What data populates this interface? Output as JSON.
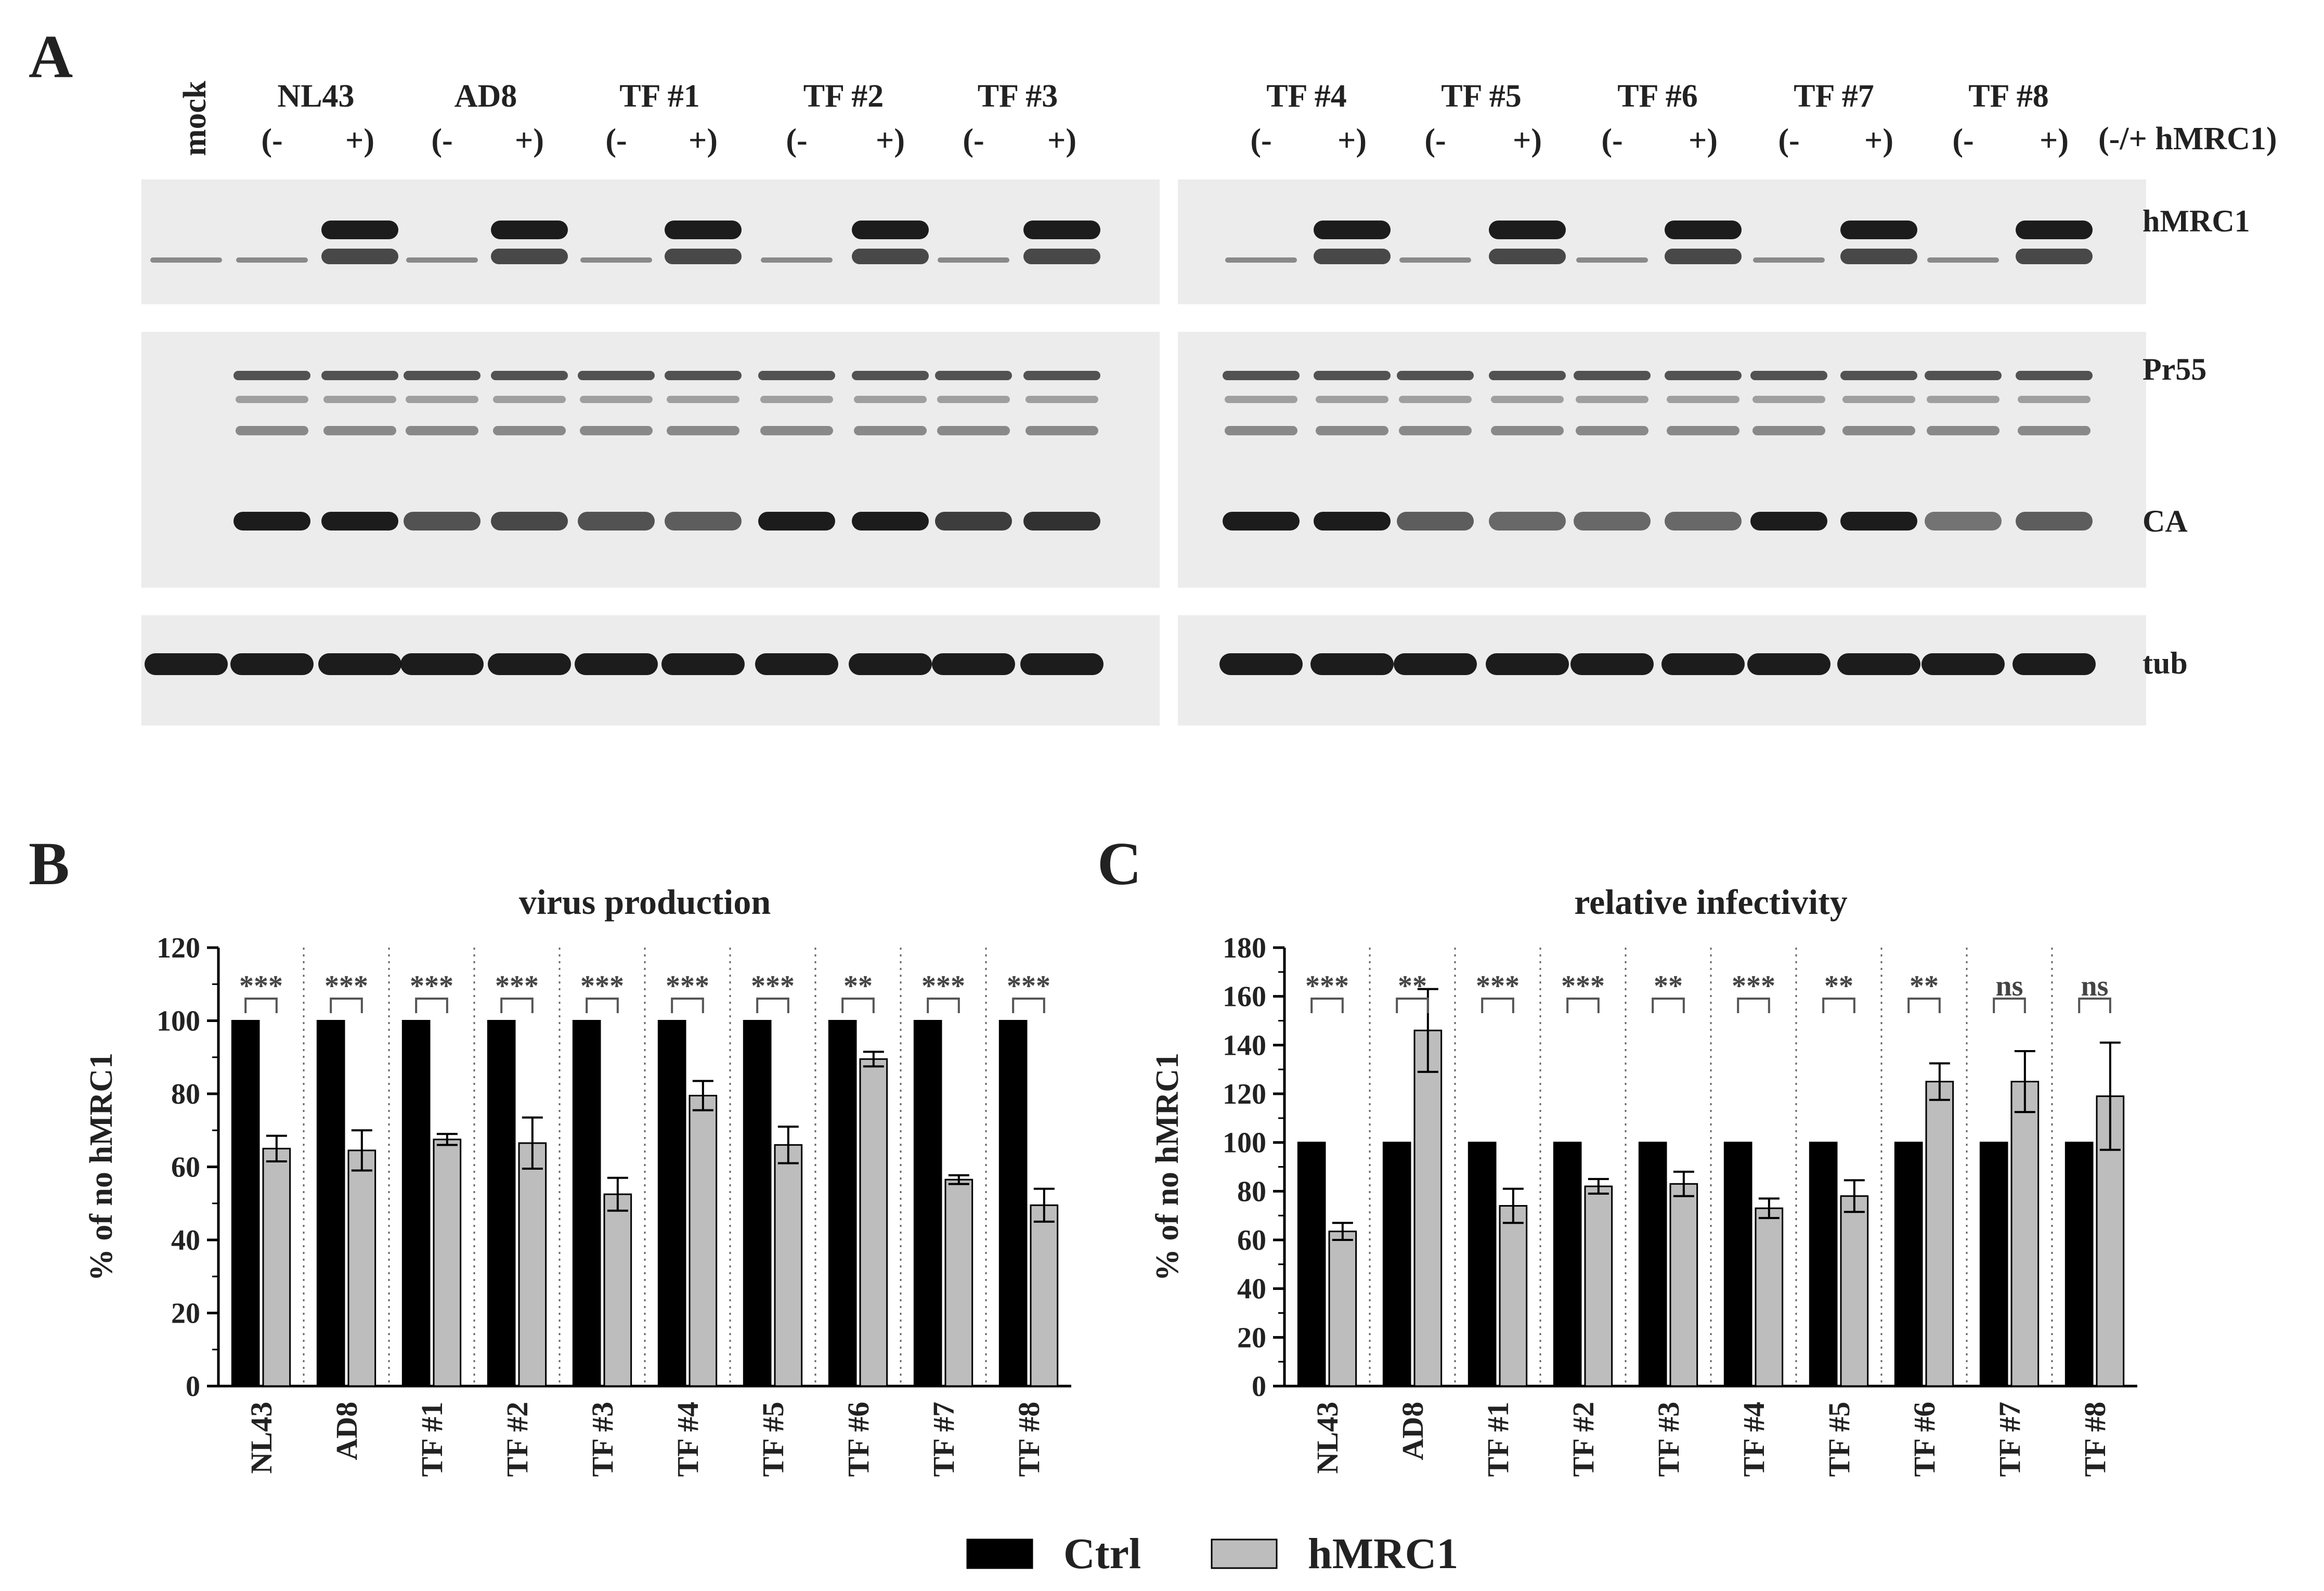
{
  "panels": {
    "a": "A",
    "b": "B",
    "c": "C"
  },
  "blot": {
    "mock_label": "mock",
    "sample_groups": [
      "NL43",
      "AD8",
      "TF #1",
      "TF #2",
      "TF #3",
      "TF #4",
      "TF #5",
      "TF #6",
      "TF #7",
      "TF #8"
    ],
    "minus_label": "(-",
    "plus_label": "+)",
    "treatment_label": "(-/+ hMRC1)",
    "band_labels": [
      "hMRC1",
      "Pr55",
      "CA",
      "tub"
    ]
  },
  "legend": [
    {
      "label": "Ctrl",
      "color": "#000000"
    },
    {
      "label": "hMRC1",
      "color": "#bdbdbd"
    }
  ],
  "chart_data": [
    {
      "type": "bar",
      "title": "virus production",
      "ylabel": "% of no hMRC1",
      "ylim": [
        0,
        120
      ],
      "yticks": [
        0,
        20,
        40,
        60,
        80,
        100,
        120
      ],
      "categories": [
        "NL43",
        "AD8",
        "TF #1",
        "TF #2",
        "TF #3",
        "TF #4",
        "TF #5",
        "TF #6",
        "TF #7",
        "TF #8"
      ],
      "series": [
        {
          "name": "Ctrl",
          "values": [
            100,
            100,
            100,
            100,
            100,
            100,
            100,
            100,
            100,
            100
          ]
        },
        {
          "name": "hMRC1",
          "values": [
            65,
            64.5,
            67.5,
            66.5,
            52.5,
            79.5,
            66,
            89.5,
            56.5,
            49.5
          ],
          "errors": [
            3.5,
            5.5,
            1.5,
            7,
            4.5,
            4,
            5,
            2,
            1.2,
            4.5
          ]
        }
      ],
      "significance": [
        "***",
        "***",
        "***",
        "***",
        "***",
        "***",
        "***",
        "**",
        "***",
        "***"
      ]
    },
    {
      "type": "bar",
      "title": "relative infectivity",
      "ylabel": "% of no hMRC1",
      "ylim": [
        0,
        180
      ],
      "yticks": [
        0,
        20,
        40,
        60,
        80,
        100,
        120,
        140,
        160,
        180
      ],
      "categories": [
        "NL43",
        "AD8",
        "TF #1",
        "TF #2",
        "TF #3",
        "TF #4",
        "TF #5",
        "TF #6",
        "TF #7",
        "TF #8"
      ],
      "series": [
        {
          "name": "Ctrl",
          "values": [
            100,
            100,
            100,
            100,
            100,
            100,
            100,
            100,
            100,
            100
          ]
        },
        {
          "name": "hMRC1",
          "values": [
            63.5,
            146,
            74,
            82,
            83,
            73,
            78,
            125,
            125,
            119
          ],
          "errors": [
            3.5,
            17,
            7,
            3,
            5,
            4,
            6.5,
            7.5,
            12.5,
            22
          ]
        }
      ],
      "significance": [
        "***",
        "**",
        "***",
        "***",
        "**",
        "***",
        "**",
        "**",
        "ns",
        "ns"
      ]
    }
  ]
}
